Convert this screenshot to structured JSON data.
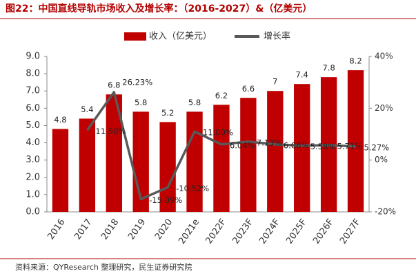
{
  "chart_data": {
    "type": "bar_line",
    "title": "图22：中国直线导轨市场收入及增长率：（2016-2027）&（亿美元）",
    "source": "资料来源：QYResearch 整理研究，民生证券研究院",
    "categories": [
      "2016",
      "2017",
      "2018",
      "2019",
      "2020",
      "2021e",
      "2022F",
      "2023F",
      "2024F",
      "2025F",
      "2026F",
      "2027F"
    ],
    "series": [
      {
        "name": "收入（亿美元）",
        "color": "#c00000",
        "values": [
          4.8,
          5.4,
          6.8,
          5.8,
          5.2,
          5.8,
          6.2,
          6.6,
          7.0,
          7.4,
          7.8,
          8.2
        ]
      },
      {
        "name": "增长率",
        "color": "#595959",
        "axis": "y2",
        "values": [
          null,
          11.5,
          26.23,
          -15.09,
          -10.52,
          11.0,
          6.04,
          7.13,
          6.06,
          5.58,
          5.71,
          5.27
        ],
        "value_labels": [
          null,
          "11.50%",
          "26.23%",
          "-15.09%",
          "-10.52%",
          "11.00%",
          "6.04%",
          "7.13%",
          "6.06%",
          "5.58%",
          "5.71%",
          "5.27%"
        ]
      }
    ],
    "ylim": [
      0,
      9
    ],
    "yticks": [
      {
        "value": 0,
        "label": "0.0"
      },
      {
        "value": 1,
        "label": "1.0"
      },
      {
        "value": 2,
        "label": "2.0"
      },
      {
        "value": 3,
        "label": "3.0"
      },
      {
        "value": 4,
        "label": "4.0"
      },
      {
        "value": 5,
        "label": "5.0"
      },
      {
        "value": 6,
        "label": "6.0"
      },
      {
        "value": 7,
        "label": "7.0"
      },
      {
        "value": 8,
        "label": "8.0"
      },
      {
        "value": 9,
        "label": "9.0"
      }
    ],
    "y2lim": [
      -20,
      40
    ],
    "y2ticks": [
      {
        "value": -20,
        "label": "-20%"
      },
      {
        "value": 0,
        "label": "0%"
      },
      {
        "value": 20,
        "label": "20%"
      },
      {
        "value": 40,
        "label": "40%"
      }
    ],
    "legend": "top"
  }
}
